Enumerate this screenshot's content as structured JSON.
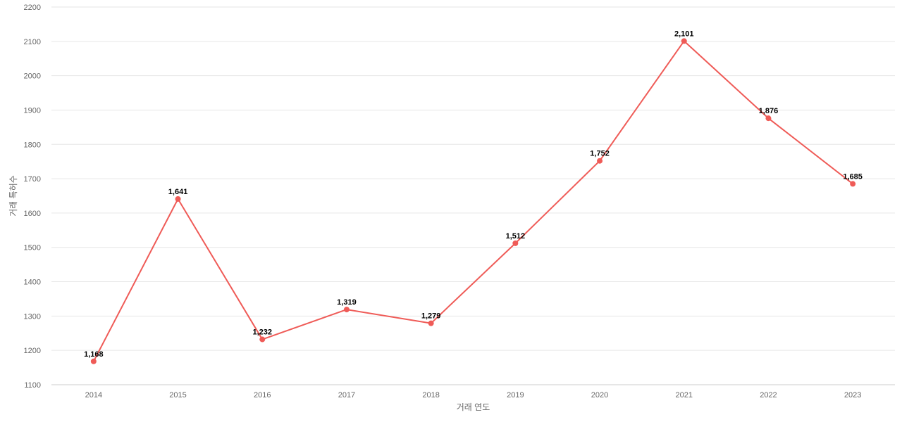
{
  "chart_data": {
    "type": "line",
    "title": "",
    "xlabel": "거래 연도",
    "ylabel": "거래 특허수",
    "categories": [
      "2014",
      "2015",
      "2016",
      "2017",
      "2018",
      "2019",
      "2020",
      "2021",
      "2022",
      "2023"
    ],
    "series": [
      {
        "values": [
          1168,
          1641,
          1232,
          1319,
          1279,
          1512,
          1752,
          2101,
          1876,
          1685
        ],
        "data_labels": [
          "1,168",
          "1,641",
          "1,232",
          "1,319",
          "1,279",
          "1,512",
          "1,752",
          "2,101",
          "1,876",
          "1,685"
        ]
      }
    ],
    "ylim": [
      1100,
      2200
    ],
    "yticks": [
      "1100",
      "1200",
      "1300",
      "1400",
      "1500",
      "1600",
      "1700",
      "1800",
      "1900",
      "2000",
      "2100",
      "2200"
    ],
    "grid": true,
    "legend": "none",
    "colors": {
      "line": "#ef5b57",
      "grid": "#e6e6e6",
      "tick_text": "#666666",
      "data_label": "#000000"
    }
  }
}
